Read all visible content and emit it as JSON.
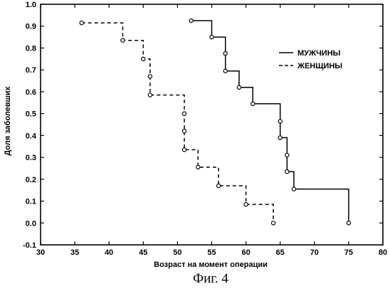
{
  "chart_data": {
    "type": "line",
    "step": true,
    "xlabel": "Возраст на момент операции",
    "ylabel": "Доля заболевших",
    "xlim": [
      30,
      80
    ],
    "ylim": [
      -0.1,
      1.0
    ],
    "xticks": [
      "30",
      "35",
      "40",
      "45",
      "50",
      "55",
      "60",
      "65",
      "70",
      "75",
      "80"
    ],
    "yticks": [
      "-0.1",
      "0.0",
      "0.1",
      "0.2",
      "0.3",
      "0.4",
      "0.5",
      "0.6",
      "0.7",
      "0.8",
      "0.9",
      "1.0"
    ],
    "grid": false,
    "legend_position": "right",
    "series": [
      {
        "name": "МУЖЧИНЫ",
        "line_style": "solid",
        "x": [
          52,
          55,
          57,
          57,
          59,
          61,
          65,
          65,
          66,
          66,
          67,
          75
        ],
        "y": [
          0.925,
          0.85,
          0.775,
          0.695,
          0.62,
          0.545,
          0.465,
          0.39,
          0.31,
          0.235,
          0.155,
          0.0
        ]
      },
      {
        "name": "ЖЕНЩИНЫ",
        "line_style": "dashed",
        "x": [
          36,
          42,
          45,
          46,
          46,
          51,
          51,
          51,
          53,
          56,
          60,
          64
        ],
        "y": [
          0.915,
          0.835,
          0.75,
          0.67,
          0.585,
          0.5,
          0.42,
          0.335,
          0.255,
          0.17,
          0.085,
          0.0
        ]
      }
    ]
  },
  "caption": "Фиг. 4"
}
